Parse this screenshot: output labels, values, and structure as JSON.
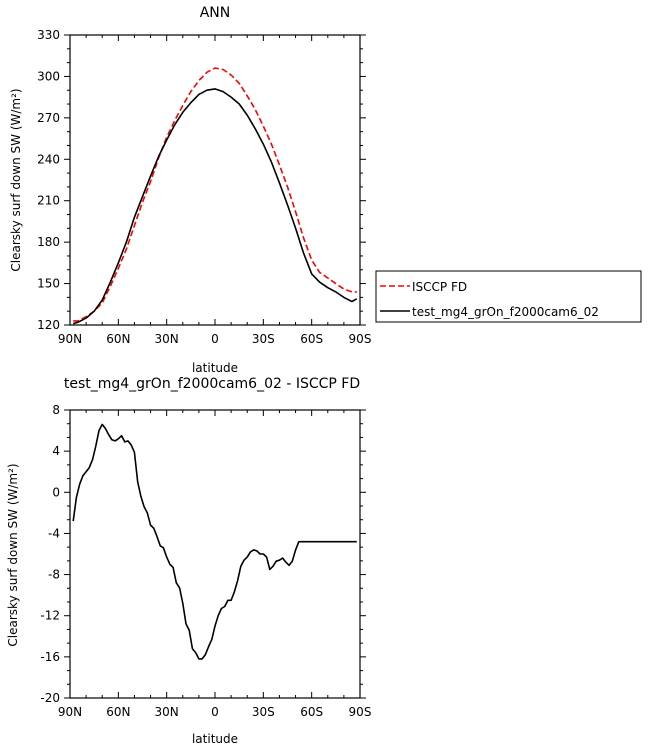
{
  "chart_data": [
    {
      "type": "line",
      "title": "ANN",
      "xlabel": "latitude",
      "ylabel": "Clearsky surf down SW (W/m²)",
      "x_ticks": [
        "90N",
        "60N",
        "30N",
        "0",
        "30S",
        "60S",
        "90S"
      ],
      "y_ticks": [
        "120",
        "150",
        "180",
        "210",
        "240",
        "270",
        "300",
        "330"
      ],
      "xlim": [
        90,
        -90
      ],
      "ylim": [
        120,
        330
      ],
      "legend_position": "outside-right",
      "grid": false,
      "series": [
        {
          "name": "ISCCP FD",
          "color": "#ff0000",
          "dash": true,
          "x": [
            88,
            85,
            80,
            75,
            70,
            65,
            60,
            55,
            50,
            45,
            40,
            35,
            30,
            25,
            20,
            15,
            10,
            5,
            0,
            -5,
            -10,
            -15,
            -20,
            -25,
            -30,
            -35,
            -40,
            -45,
            -50,
            -55,
            -60,
            -65,
            -70,
            -75,
            -80,
            -85,
            -88
          ],
          "values": [
            123,
            123,
            126,
            130,
            136,
            148,
            161,
            175,
            192,
            209,
            224,
            241,
            256,
            268,
            279,
            289,
            297,
            303,
            306,
            305,
            301,
            295,
            286,
            276,
            264,
            251,
            236,
            220,
            202,
            183,
            167,
            158,
            154,
            150,
            146,
            144,
            144
          ]
        },
        {
          "name": "test_mg4_grOn_f2000cam6_02",
          "color": "#000000",
          "dash": false,
          "x": [
            88,
            85,
            80,
            75,
            70,
            65,
            60,
            55,
            50,
            45,
            40,
            35,
            30,
            25,
            20,
            15,
            10,
            5,
            0,
            -5,
            -10,
            -15,
            -20,
            -25,
            -30,
            -35,
            -40,
            -45,
            -50,
            -55,
            -60,
            -65,
            -70,
            -75,
            -80,
            -85,
            -88
          ],
          "values": [
            121,
            122,
            125,
            130,
            138,
            151,
            165,
            180,
            198,
            213,
            228,
            242,
            254,
            265,
            274,
            281,
            287,
            290,
            291,
            289,
            285,
            280,
            272,
            262,
            251,
            238,
            223,
            207,
            190,
            172,
            157,
            151,
            147,
            144,
            140,
            137,
            139
          ]
        }
      ]
    },
    {
      "type": "line",
      "title": "test_mg4_grOn_f2000cam6_02 - ISCCP FD",
      "xlabel": "latitude",
      "ylabel": "Clearsky surf down SW (W/m²)",
      "x_ticks": [
        "90N",
        "60N",
        "30N",
        "0",
        "30S",
        "60S",
        "90S"
      ],
      "y_ticks": [
        "-20",
        "-16",
        "-12",
        "-8",
        "-4",
        "0",
        "4",
        "8"
      ],
      "xlim": [
        90,
        -90
      ],
      "ylim": [
        -20,
        8
      ],
      "grid": false,
      "series": [
        {
          "color": "#000000",
          "x": [
            88,
            86,
            84,
            82,
            80,
            78,
            76,
            74,
            72,
            70,
            68,
            66,
            64,
            62,
            60,
            58,
            56,
            54,
            52,
            50,
            48,
            46,
            44,
            42,
            40,
            38,
            36,
            34,
            32,
            30,
            28,
            26,
            24,
            22,
            20,
            18,
            16,
            14,
            12,
            10,
            8,
            6,
            4,
            2,
            0,
            -2,
            -4,
            -6,
            -8,
            -10,
            -12,
            -14,
            -16,
            -18,
            -20,
            -22,
            -24,
            -26,
            -28,
            -30,
            -32,
            -34,
            -36,
            -38,
            -40,
            -42,
            -44,
            -46,
            -48,
            -50,
            -52,
            -54,
            -56,
            -58,
            -60,
            -62,
            -64,
            -66,
            -68,
            -70,
            -72,
            -74,
            -76,
            -78,
            -80,
            -82,
            -84,
            -86,
            -88
          ],
          "values": [
            -2.8,
            -0.5,
            0.8,
            1.6,
            2.0,
            2.4,
            3.2,
            4.5,
            6.0,
            6.6,
            6.2,
            5.6,
            5.1,
            5.0,
            5.2,
            5.5,
            4.9,
            5.0,
            4.6,
            3.9,
            1.0,
            -0.4,
            -1.4,
            -2.0,
            -3.2,
            -3.5,
            -4.3,
            -5.2,
            -5.4,
            -6.3,
            -7.0,
            -7.3,
            -8.8,
            -9.3,
            -10.8,
            -12.8,
            -13.4,
            -15.2,
            -15.6,
            -16.2,
            -16.2,
            -15.8,
            -15.0,
            -14.3,
            -13.0,
            -12.0,
            -11.3,
            -11.1,
            -10.5,
            -10.5,
            -9.7,
            -8.6,
            -7.2,
            -6.6,
            -6.3,
            -5.8,
            -5.6,
            -5.7,
            -6.0,
            -6.0,
            -6.3,
            -7.5,
            -7.2,
            -6.7,
            -6.6,
            -6.4,
            -6.8,
            -7.1,
            -6.7,
            -5.6,
            -4.8,
            -4.8,
            -4.8,
            -4.8,
            -4.8,
            -4.8,
            -4.8,
            -4.8,
            -4.8,
            -4.8,
            -4.8,
            -4.8,
            -4.8,
            -4.8,
            -4.8,
            -4.8,
            -4.8,
            -4.8,
            -4.8
          ]
        }
      ]
    }
  ]
}
